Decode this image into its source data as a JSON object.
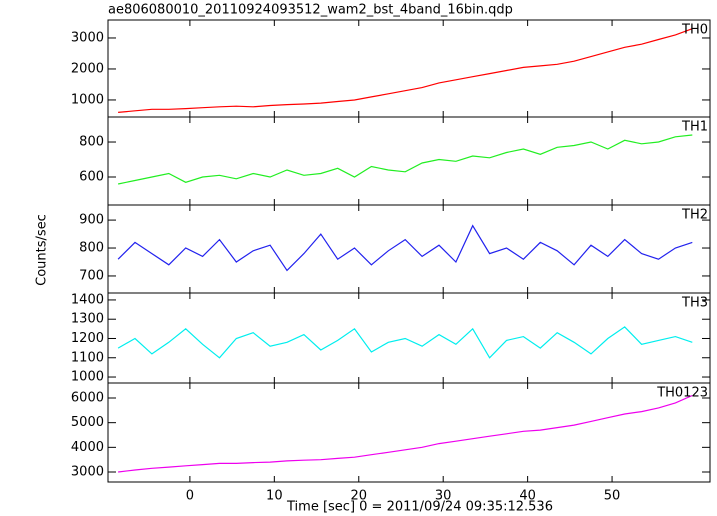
{
  "title": "ae806080010_20110924093512_wam2_bst_4band_16bin.qdp",
  "xlabel": "Time [sec] 0 = 2011/09/24 09:35:12.536",
  "ylabel": "Counts/sec",
  "chart_data": [
    {
      "type": "line",
      "label": "TH0",
      "color": "#ff0000",
      "x": [
        -8.5,
        -6.5,
        -4.5,
        -2.5,
        -0.5,
        1.5,
        3.5,
        5.5,
        7.5,
        9.5,
        11.5,
        13.5,
        15.5,
        17.5,
        19.5,
        21.5,
        23.5,
        25.5,
        27.5,
        29.5,
        31.5,
        33.5,
        35.5,
        37.5,
        39.5,
        41.5,
        43.5,
        45.5,
        47.5,
        49.5,
        51.5,
        53.5,
        55.5,
        57.5,
        59.5
      ],
      "values": [
        600,
        650,
        700,
        700,
        720,
        750,
        780,
        800,
        780,
        820,
        850,
        870,
        900,
        950,
        1000,
        1100,
        1200,
        1300,
        1400,
        1550,
        1650,
        1750,
        1850,
        1950,
        2050,
        2100,
        2150,
        2250,
        2400,
        2550,
        2700,
        2800,
        2950,
        3100,
        3300
      ],
      "xlim": [
        -9.7,
        61.6
      ],
      "xticks": [
        0,
        10,
        20,
        30,
        40,
        50
      ],
      "ylim": [
        450,
        3580
      ],
      "yticks": [
        1000,
        2000,
        3000
      ]
    },
    {
      "type": "line",
      "label": "TH1",
      "color": "#22ee22",
      "x": [
        -8.5,
        -6.5,
        -4.5,
        -2.5,
        -0.5,
        1.5,
        3.5,
        5.5,
        7.5,
        9.5,
        11.5,
        13.5,
        15.5,
        17.5,
        19.5,
        21.5,
        23.5,
        25.5,
        27.5,
        29.5,
        31.5,
        33.5,
        35.5,
        37.5,
        39.5,
        41.5,
        43.5,
        45.5,
        47.5,
        49.5,
        51.5,
        53.5,
        55.5,
        57.5,
        59.5
      ],
      "values": [
        560,
        580,
        600,
        620,
        570,
        600,
        610,
        590,
        620,
        600,
        640,
        610,
        620,
        650,
        600,
        660,
        640,
        630,
        680,
        700,
        690,
        720,
        710,
        740,
        760,
        730,
        770,
        780,
        800,
        760,
        810,
        790,
        800,
        830,
        840
      ],
      "xlim": [
        -9.7,
        61.6
      ],
      "xticks": [
        0,
        10,
        20,
        30,
        40,
        50
      ],
      "ylim": [
        440,
        943
      ],
      "yticks": [
        600,
        800
      ]
    },
    {
      "type": "line",
      "label": "TH2",
      "color": "#2222ee",
      "x": [
        -8.5,
        -6.5,
        -4.5,
        -2.5,
        -0.5,
        1.5,
        3.5,
        5.5,
        7.5,
        9.5,
        11.5,
        13.5,
        15.5,
        17.5,
        19.5,
        21.5,
        23.5,
        25.5,
        27.5,
        29.5,
        31.5,
        33.5,
        35.5,
        37.5,
        39.5,
        41.5,
        43.5,
        45.5,
        47.5,
        49.5,
        51.5,
        53.5,
        55.5,
        57.5,
        59.5
      ],
      "values": [
        760,
        820,
        780,
        740,
        800,
        770,
        830,
        750,
        790,
        810,
        720,
        780,
        850,
        760,
        800,
        740,
        790,
        830,
        770,
        810,
        750,
        880,
        780,
        800,
        760,
        820,
        790,
        740,
        810,
        770,
        830,
        780,
        760,
        800,
        820
      ],
      "xlim": [
        -9.7,
        61.6
      ],
      "xticks": [
        0,
        10,
        20,
        30,
        40,
        50
      ],
      "ylim": [
        639,
        954
      ],
      "yticks": [
        700,
        800,
        900
      ]
    },
    {
      "type": "line",
      "label": "TH3",
      "color": "#00eeee",
      "x": [
        -8.5,
        -6.5,
        -4.5,
        -2.5,
        -0.5,
        1.5,
        3.5,
        5.5,
        7.5,
        9.5,
        11.5,
        13.5,
        15.5,
        17.5,
        19.5,
        21.5,
        23.5,
        25.5,
        27.5,
        29.5,
        31.5,
        33.5,
        35.5,
        37.5,
        39.5,
        41.5,
        43.5,
        45.5,
        47.5,
        49.5,
        51.5,
        53.5,
        55.5,
        57.5,
        59.5
      ],
      "values": [
        1150,
        1200,
        1120,
        1180,
        1250,
        1170,
        1100,
        1200,
        1230,
        1160,
        1180,
        1220,
        1140,
        1190,
        1250,
        1130,
        1180,
        1200,
        1160,
        1220,
        1170,
        1250,
        1100,
        1190,
        1210,
        1150,
        1230,
        1180,
        1120,
        1200,
        1260,
        1170,
        1190,
        1210,
        1180
      ],
      "xlim": [
        -9.7,
        61.6
      ],
      "xticks": [
        0,
        10,
        20,
        30,
        40,
        50
      ],
      "ylim": [
        969,
        1436
      ],
      "yticks": [
        1000,
        1100,
        1200,
        1300,
        1400
      ]
    },
    {
      "type": "line",
      "label": "TH0123",
      "color": "#ee00ee",
      "x": [
        -8.5,
        -6.5,
        -4.5,
        -2.5,
        -0.5,
        1.5,
        3.5,
        5.5,
        7.5,
        9.5,
        11.5,
        13.5,
        15.5,
        17.5,
        19.5,
        21.5,
        23.5,
        25.5,
        27.5,
        29.5,
        31.5,
        33.5,
        35.5,
        37.5,
        39.5,
        41.5,
        43.5,
        45.5,
        47.5,
        49.5,
        51.5,
        53.5,
        55.5,
        57.5,
        59.5
      ],
      "values": [
        3000,
        3080,
        3150,
        3200,
        3250,
        3300,
        3350,
        3350,
        3380,
        3400,
        3450,
        3480,
        3500,
        3550,
        3600,
        3700,
        3800,
        3900,
        4000,
        4150,
        4250,
        4350,
        4450,
        4550,
        4650,
        4700,
        4800,
        4900,
        5050,
        5200,
        5350,
        5450,
        5600,
        5800,
        6100
      ],
      "xlim": [
        -9.7,
        61.6
      ],
      "xticks": [
        0,
        10,
        20,
        30,
        40,
        50
      ],
      "ylim": [
        2595,
        6608
      ],
      "yticks": [
        3000,
        4000,
        5000,
        6000
      ]
    }
  ]
}
